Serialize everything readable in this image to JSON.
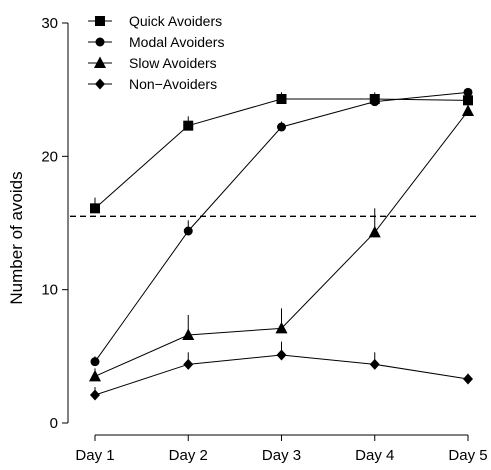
{
  "chart_data": {
    "type": "line",
    "title": "",
    "xlabel": "",
    "ylabel": "Number of avoids",
    "categories": [
      "Day 1",
      "Day 2",
      "Day 3",
      "Day 4",
      "Day 5"
    ],
    "ylim": [
      0,
      30
    ],
    "yticks": [
      0,
      10,
      20,
      30
    ],
    "reference_line": {
      "y": 15.5,
      "style": "dashed"
    },
    "grid": false,
    "legend_position": "top-left",
    "series": [
      {
        "name": "Quick Avoiders",
        "marker": "square",
        "values": [
          16.1,
          22.3,
          24.3,
          24.3,
          24.2
        ],
        "errors": [
          0.8,
          0.7,
          0.5,
          0.5,
          0.5
        ]
      },
      {
        "name": "Modal Avoiders",
        "marker": "circle",
        "values": [
          4.6,
          14.4,
          22.2,
          24.1,
          24.8
        ],
        "errors": [
          0.4,
          0.8,
          0.4,
          0.3,
          0.2
        ]
      },
      {
        "name": "Slow Avoiders",
        "marker": "triangle",
        "values": [
          3.5,
          6.6,
          7.1,
          14.3,
          23.4
        ],
        "errors": [
          0.6,
          1.5,
          1.5,
          1.8,
          0.8
        ]
      },
      {
        "name": "Non−Avoiders",
        "marker": "diamond",
        "values": [
          2.1,
          4.4,
          5.1,
          4.4,
          3.3
        ],
        "errors": [
          0.6,
          0.9,
          1.0,
          0.9,
          0.4
        ]
      }
    ]
  }
}
